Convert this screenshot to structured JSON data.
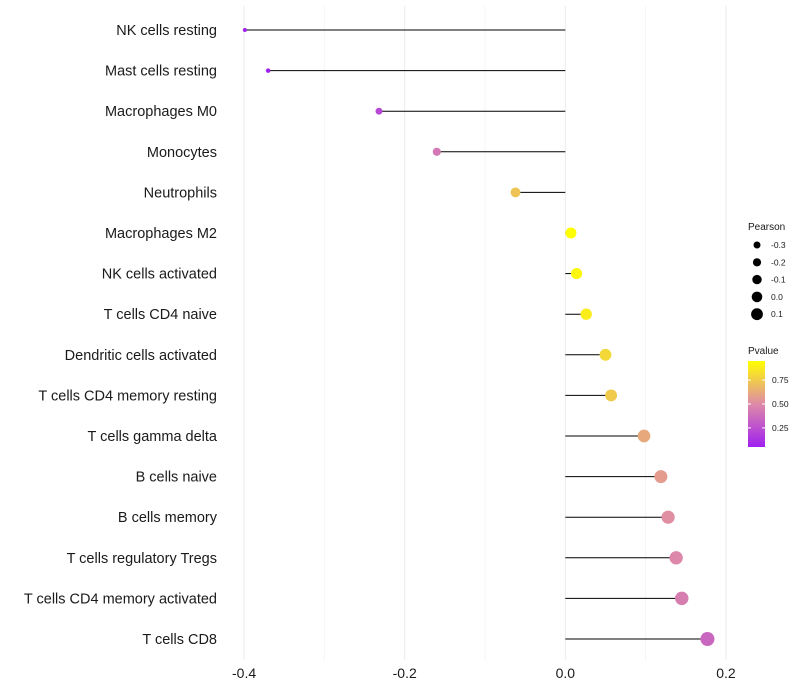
{
  "chart_data": {
    "type": "lollipop",
    "orientation": "horizontal",
    "xlim": [
      -0.42,
      0.22
    ],
    "xticks": [
      -0.4,
      -0.2,
      0.0,
      0.2
    ],
    "xtick_labels": [
      "-0.4",
      "-0.2",
      "0.0",
      "0.2"
    ],
    "grid": true,
    "categories": [
      "NK cells resting",
      "Mast cells resting",
      "Macrophages M0",
      "Monocytes",
      "Neutrophils",
      "Macrophages M2",
      "NK cells activated",
      "T cells CD4 naive",
      "Dendritic cells activated",
      "T cells CD4 memory resting",
      "T cells gamma delta",
      "B cells naive",
      "B cells memory",
      "T cells regulatory  Tregs ",
      "T cells CD4 memory activated",
      "T cells CD8"
    ],
    "values": [
      -0.399,
      -0.37,
      -0.232,
      -0.16,
      -0.062,
      0.007,
      0.014,
      0.026,
      0.05,
      0.057,
      0.098,
      0.119,
      0.128,
      0.138,
      0.145,
      0.177
    ],
    "pvalues": [
      0.02,
      0.05,
      0.22,
      0.42,
      0.72,
      0.95,
      0.92,
      0.88,
      0.8,
      0.75,
      0.62,
      0.57,
      0.52,
      0.49,
      0.45,
      0.35
    ],
    "size_legend": {
      "title": "Pearson",
      "values": [
        -0.3,
        -0.2,
        -0.1,
        0.0,
        0.1
      ],
      "labels": [
        "-0.3",
        "-0.2",
        "-0.1",
        "0.0",
        "0.1"
      ]
    },
    "color_legend": {
      "title": "Pvalue",
      "range": [
        0.05,
        0.95
      ],
      "ticks": [
        0.25,
        0.5,
        0.75
      ],
      "tick_labels": [
        "0.25",
        "0.50",
        "0.75"
      ],
      "low_color": "#a020f0",
      "mid_color": "#de8aa8",
      "high_color": "#ffff00"
    },
    "line_color": "#000000",
    "grid_color": "#ebebeb"
  }
}
